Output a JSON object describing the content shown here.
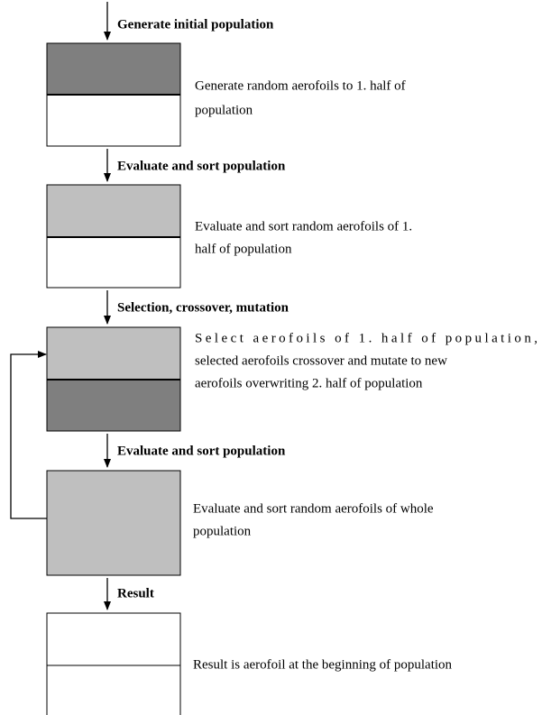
{
  "steps": [
    {
      "label": "Generate initial population",
      "description": [
        "Generate random aerofoils to 1. half of",
        "population"
      ]
    },
    {
      "label": "Evaluate and sort population",
      "description": [
        "Evaluate and sort random aerofoils of 1.",
        "half of population"
      ]
    },
    {
      "label": "Selection, crossover, mutation",
      "description": [
        "Select aerofoils of 1. half of population,",
        "selected aerofoils crossover and mutate to new",
        "aerofoils overwriting 2. half of population"
      ]
    },
    {
      "label": "Evaluate and sort population",
      "description": [
        "Evaluate and sort random aerofoils of whole",
        "population"
      ]
    },
    {
      "label": "Result",
      "description": [
        "Result is aerofoil at the beginning of population"
      ]
    }
  ]
}
